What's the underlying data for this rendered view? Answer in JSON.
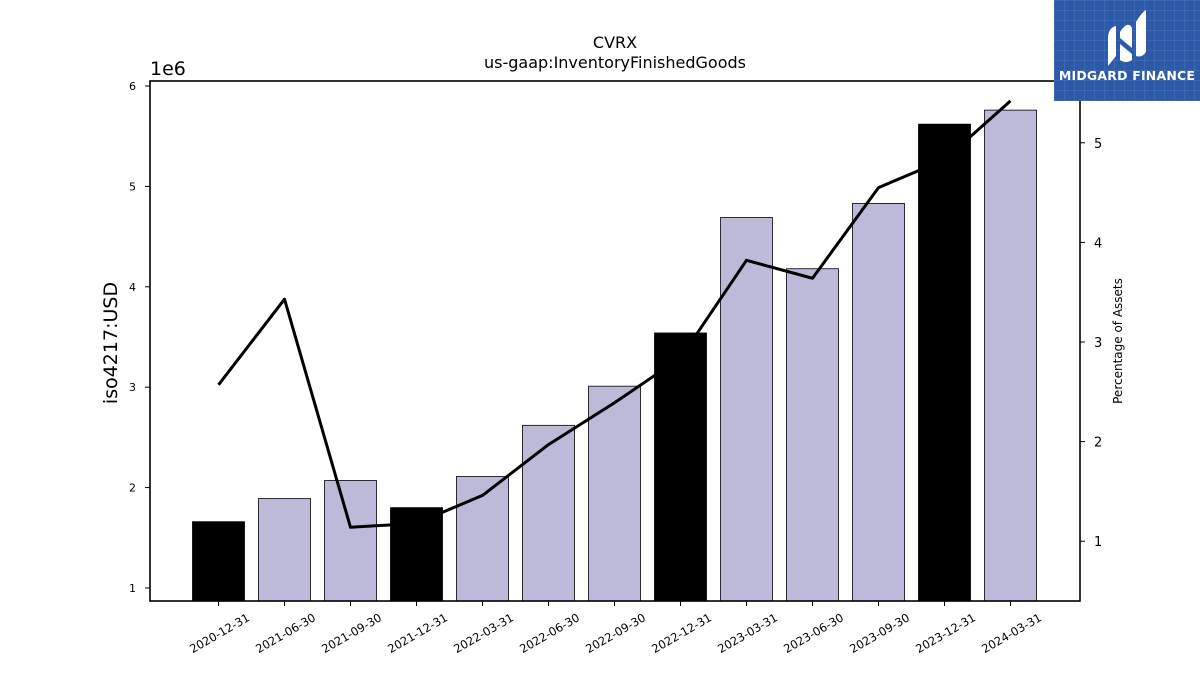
{
  "logo": {
    "text": "MIDGARD FINANCE",
    "color": "#2d5aa8"
  },
  "chart_data": {
    "type": "bar",
    "title": "CVRX",
    "subtitle": "us-gaap:InventoryFinishedGoods",
    "ylabel": "iso4217:USD",
    "y_offset_label": "1e6",
    "y2label": "Percentage of Assets",
    "ylim": [
      0.87,
      6.05
    ],
    "y2lim": [
      0.4,
      5.62
    ],
    "yticks": [
      1,
      2,
      3,
      4,
      5,
      6
    ],
    "yticks_scaled_labels": [
      "1",
      "2",
      "3",
      "4",
      "5",
      "6"
    ],
    "y2ticks": [
      1,
      2,
      3,
      4,
      5
    ],
    "y2tick_labels": [
      "1",
      "2",
      "3",
      "4",
      "5"
    ],
    "grid": false,
    "categories": [
      "2020-12-31",
      "2021-06-30",
      "2021-09-30",
      "2021-12-31",
      "2022-03-31",
      "2022-06-30",
      "2022-09-30",
      "2022-12-31",
      "2023-03-31",
      "2023-06-30",
      "2023-09-30",
      "2023-12-31",
      "2024-03-31"
    ],
    "series": [
      {
        "type": "bar",
        "axis": "left",
        "values": [
          1660000,
          1890000,
          2070000,
          1800000,
          2110000,
          2620000,
          3010000,
          3540000,
          4690000,
          4180000,
          4830000,
          5620000,
          5760000
        ],
        "colors": [
          "#000000",
          "#bdbad9",
          "#bdbad9",
          "#000000",
          "#bdbad9",
          "#bdbad9",
          "#bdbad9",
          "#000000",
          "#bdbad9",
          "#bdbad9",
          "#bdbad9",
          "#000000",
          "#bdbad9"
        ]
      },
      {
        "type": "line",
        "axis": "right",
        "color": "#000000",
        "values": [
          2.57,
          3.43,
          1.14,
          1.18,
          1.46,
          1.97,
          2.39,
          2.84,
          3.82,
          3.64,
          4.55,
          4.83,
          5.42
        ]
      }
    ]
  }
}
